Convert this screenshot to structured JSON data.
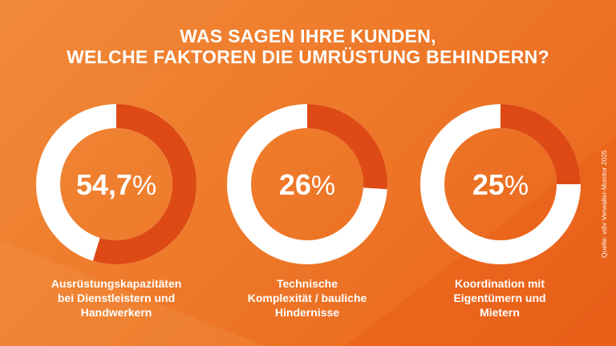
{
  "title": {
    "line1": "WAS SAGEN IHRE KUNDEN,",
    "line2": "WELCHE FAKTOREN DIE UMRÜSTUNG BEHINDERN?"
  },
  "source": "Quelle: vdiv Verwalter-Monitor 2025",
  "colors": {
    "background": "#ee7a2a",
    "segment": "#dd4a15",
    "ring": "#ffffff"
  },
  "chart_data": [
    {
      "type": "pie",
      "value_label": "54,7",
      "percent_sign": "%",
      "values": [
        54.7,
        45.3
      ],
      "caption": [
        "Ausrüstungskapazitäten",
        "bei Dienstleistern und",
        "Handwerkern"
      ]
    },
    {
      "type": "pie",
      "value_label": "26",
      "percent_sign": "%",
      "values": [
        26,
        74
      ],
      "caption": [
        "Technische",
        "Komplexität / bauliche",
        "Hindernisse"
      ]
    },
    {
      "type": "pie",
      "value_label": "25",
      "percent_sign": "%",
      "values": [
        25,
        75
      ],
      "caption": [
        "Koordination mit",
        "Eigentümern und",
        "Mietern"
      ]
    }
  ]
}
